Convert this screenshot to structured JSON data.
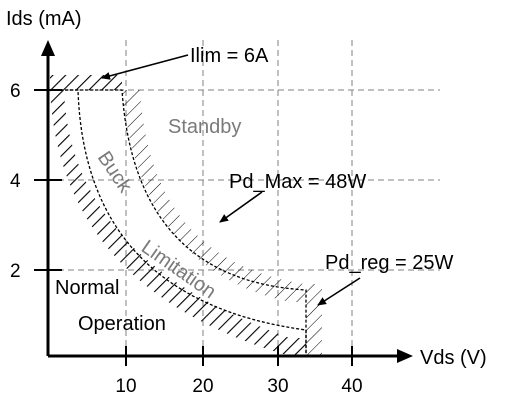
{
  "axes": {
    "y_label": "Ids (mA)",
    "x_label": "Vds (V)",
    "y_ticks": [
      "2",
      "4",
      "6"
    ],
    "x_ticks": [
      "10",
      "20",
      "30",
      "40"
    ]
  },
  "annotations": {
    "ilim": "Ilim = 6A",
    "standby": "Standby",
    "pd_max": "Pd_Max = 48W",
    "pd_reg": "Pd_reg = 25W",
    "normal_1": "Normal",
    "normal_2": "Operation",
    "buck": "Buck",
    "limitation": "Limitation"
  },
  "colors": {
    "axis": "#000000",
    "grid": "#808080",
    "hatch": "#000000",
    "region_text": "#7a7a7a"
  }
}
